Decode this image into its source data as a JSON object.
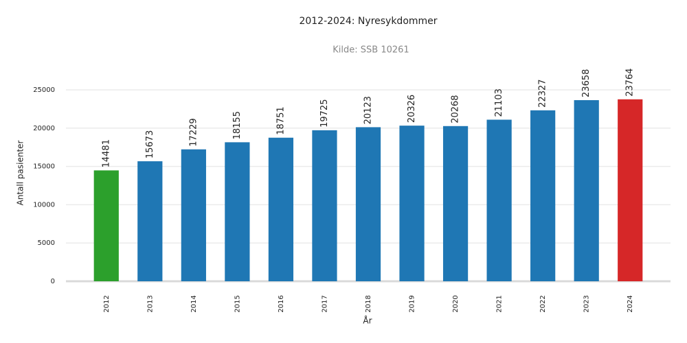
{
  "chart_data": {
    "type": "bar",
    "title": "2012-2024: Nyresykdommer",
    "subtitle": "Kilde: SSB 10261",
    "x_label": "År",
    "y_label": "Antall pasienter",
    "categories": [
      "2012",
      "2013",
      "2014",
      "2015",
      "2016",
      "2017",
      "2018",
      "2019",
      "2020",
      "2021",
      "2022",
      "2023",
      "2024"
    ],
    "values": [
      14481,
      15673,
      17229,
      18155,
      18751,
      19725,
      20123,
      20326,
      20268,
      21103,
      22327,
      23658,
      23764
    ],
    "colors": [
      "#2ca02c",
      "#1f77b4",
      "#1f77b4",
      "#1f77b4",
      "#1f77b4",
      "#1f77b4",
      "#1f77b4",
      "#1f77b4",
      "#1f77b4",
      "#1f77b4",
      "#1f77b4",
      "#1f77b4",
      "#d62728"
    ],
    "ylim": [
      0,
      28000
    ],
    "yticks": [
      0,
      5000,
      10000,
      15000,
      20000,
      25000
    ],
    "grid": true
  }
}
